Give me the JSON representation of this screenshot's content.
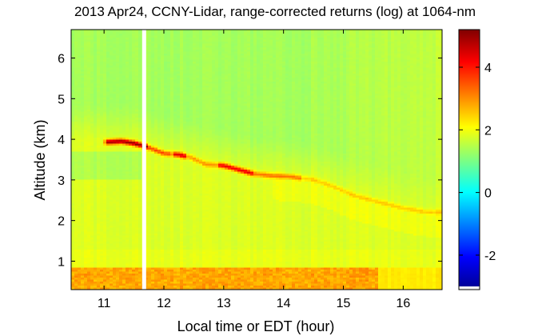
{
  "chart_data": {
    "type": "heatmap",
    "title": "2013 Apr24, CCNY-Lidar, range-corrected returns (log) at 1064-nm",
    "xlabel": "Local time or EDT (hour)",
    "ylabel": "Altitude (km)",
    "xlim": [
      10.45,
      16.65
    ],
    "ylim": [
      0.3,
      6.7
    ],
    "xticks": [
      "11",
      "12",
      "13",
      "14",
      "15",
      "16"
    ],
    "xtick_values": [
      11,
      12,
      13,
      14,
      15,
      16
    ],
    "yticks": [
      "1",
      "2",
      "3",
      "4",
      "5",
      "6"
    ],
    "ytick_values": [
      1,
      2,
      3,
      4,
      5,
      6
    ],
    "colorbar": {
      "colormap": "jet",
      "range": [
        -3.1,
        5.2
      ],
      "ticks": [
        "-2",
        "0",
        "2",
        "4"
      ],
      "tick_values": [
        -2,
        0,
        2,
        4
      ]
    },
    "features": {
      "background_level": 1.8,
      "boundary_layer": {
        "top_km": 0.85,
        "level": 2.8
      },
      "aerosol_layer": {
        "points": [
          [
            11.05,
            3.93
          ],
          [
            11.3,
            3.95
          ],
          [
            11.5,
            3.9
          ],
          [
            11.7,
            3.82
          ],
          [
            12.0,
            3.65
          ],
          [
            12.25,
            3.62
          ],
          [
            12.45,
            3.55
          ],
          [
            12.7,
            3.38
          ],
          [
            13.0,
            3.35
          ],
          [
            13.25,
            3.25
          ],
          [
            13.5,
            3.15
          ],
          [
            13.8,
            3.1
          ],
          [
            14.1,
            3.08
          ],
          [
            14.5,
            3.0
          ],
          [
            14.8,
            2.85
          ],
          [
            15.2,
            2.6
          ],
          [
            15.6,
            2.45
          ],
          [
            16.0,
            2.3
          ],
          [
            16.4,
            2.2
          ]
        ],
        "peak_level": 5.2
      },
      "data_gap_time": 11.67
    }
  }
}
